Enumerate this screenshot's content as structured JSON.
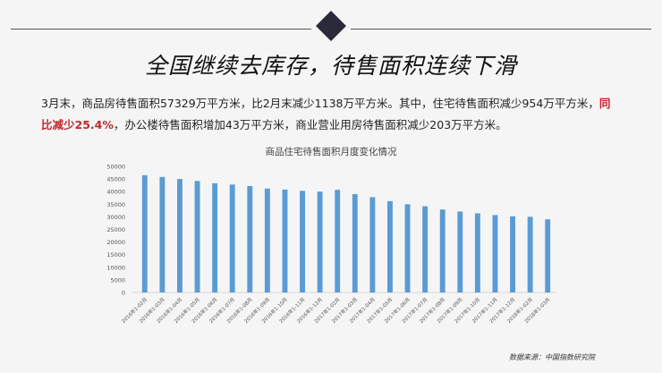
{
  "headline": "全国继续去库存，待售面积连续下滑",
  "description": {
    "part1": "3月末，商品房待售面积57329万平方米，比2月末减少1138万平方米。其中，住宅待售面积减少954万平方米，",
    "highlight": "同比减少25.4%",
    "part2": "，办公楼待售面积增加43万平方米，商业营业用房待售面积减少203万平方米。"
  },
  "source": "数据来源：中国指数研究院",
  "colors": {
    "bar": "#5b9bd5",
    "highlight": "#c0282d",
    "diamond": "#2a2a3a"
  },
  "chart_data": {
    "type": "bar",
    "title": "商品住宅待售面积月度变化情况",
    "xlabel": "",
    "ylabel": "",
    "ylim": [
      0,
      50000
    ],
    "yticks": [
      0,
      5000,
      10000,
      15000,
      20000,
      25000,
      30000,
      35000,
      40000,
      45000,
      50000
    ],
    "grid": false,
    "categories": [
      "2016年1-02月",
      "2016年1-03月",
      "2016年1-04月",
      "2016年1-05月",
      "2016年1-06月",
      "2016年1-07月",
      "2016年1-08月",
      "2016年1-09月",
      "2016年1-10月",
      "2016年1-11月",
      "2016年1-12月",
      "2017年1-02月",
      "2017年1-03月",
      "2017年1-04月",
      "2017年1-05月",
      "2017年1-06月",
      "2017年1-07月",
      "2017年1-08月",
      "2017年1-09月",
      "2017年1-10月",
      "2017年1-11月",
      "2017年1-12月",
      "2018年1-02月",
      "2018年1-03月"
    ],
    "values": [
      46500,
      45800,
      45000,
      44200,
      43300,
      42800,
      42200,
      41200,
      40800,
      40300,
      40000,
      40700,
      39000,
      37800,
      36200,
      35000,
      34200,
      32900,
      32100,
      31400,
      30700,
      30200,
      30000,
      29000
    ]
  }
}
